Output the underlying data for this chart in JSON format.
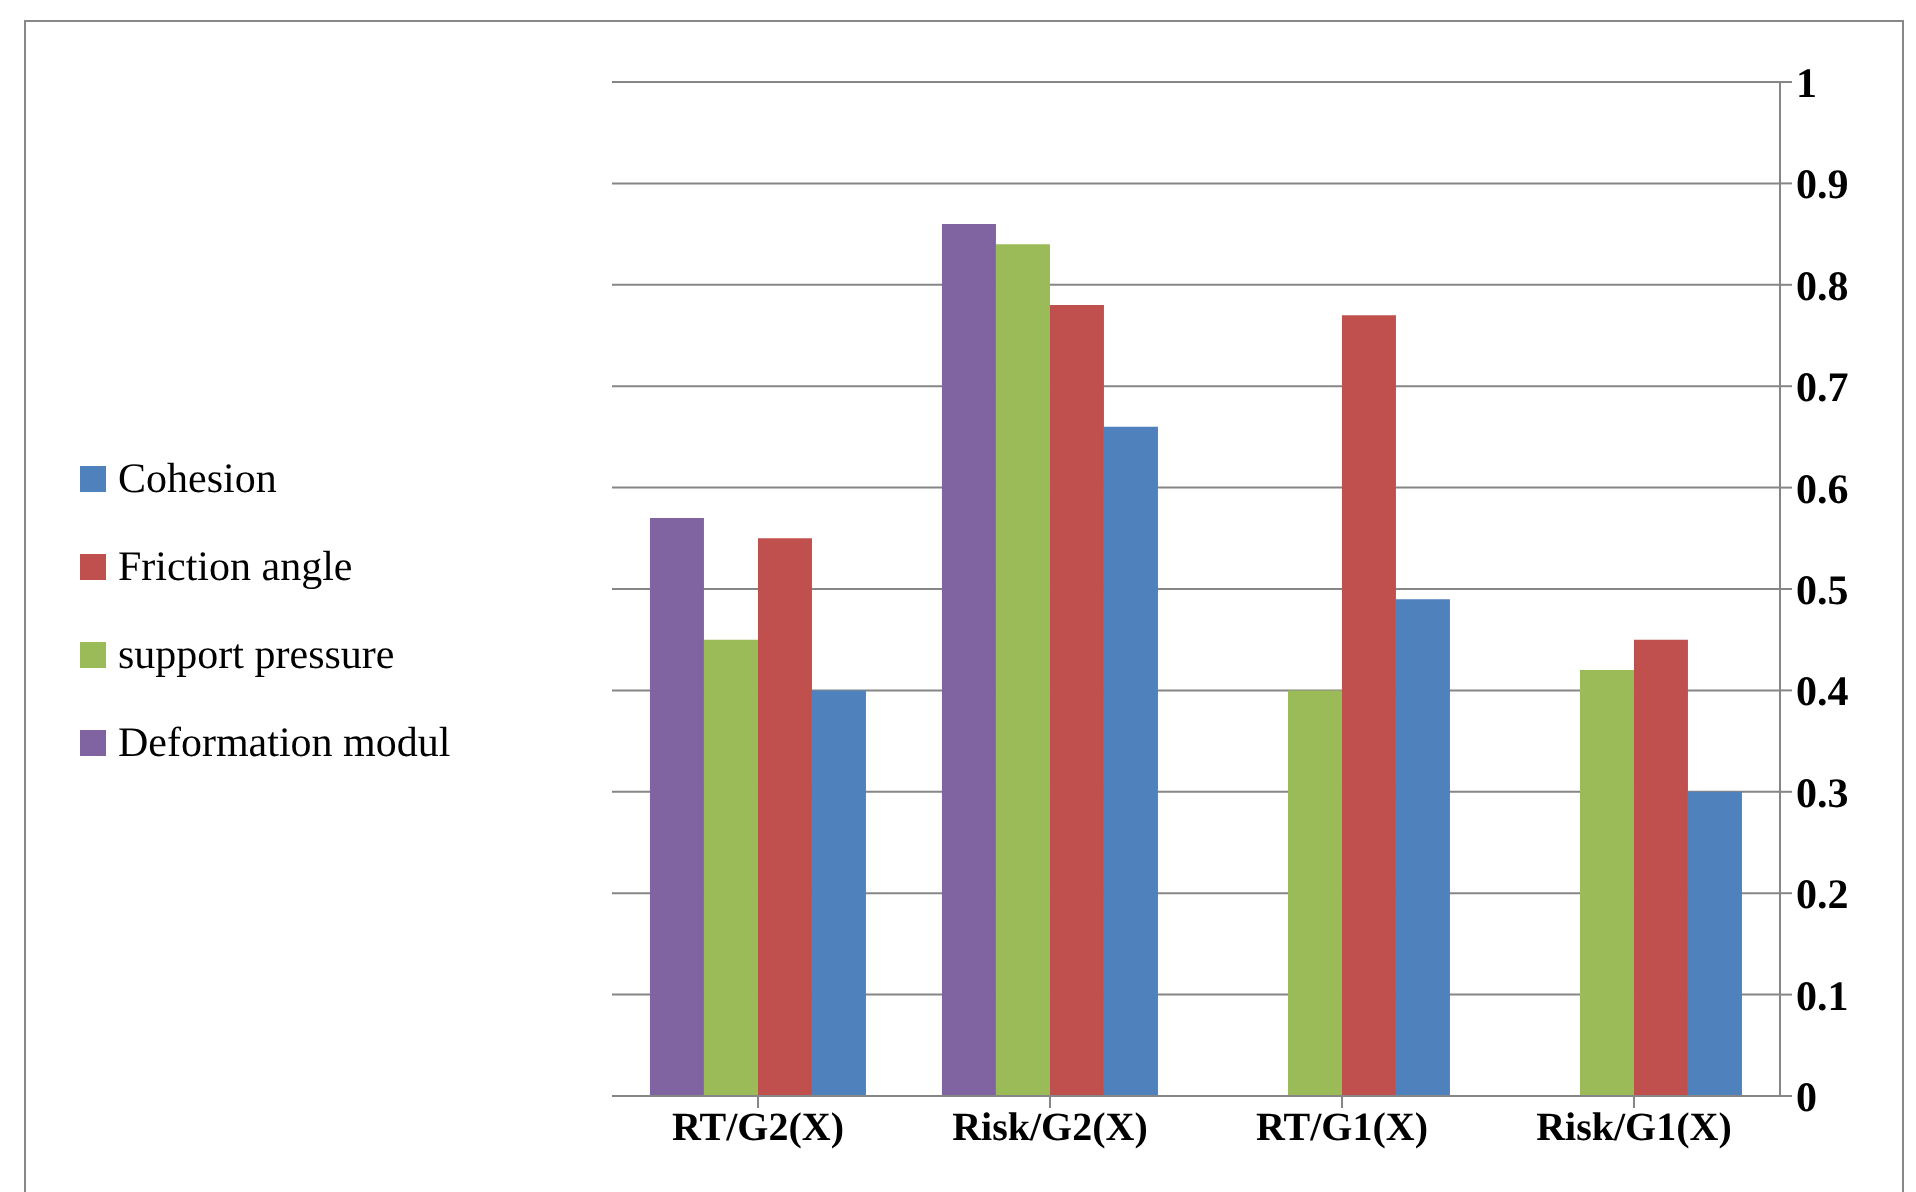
{
  "chart_data": {
    "type": "bar",
    "categories": [
      "RT/G2(X)",
      "Risk/G2(X)",
      "RT/G1(X)",
      "Risk/G1(X)"
    ],
    "series": [
      {
        "name": "Cohesion",
        "color": "#4f81bd",
        "values": [
          0.4,
          0.66,
          0.49,
          0.3
        ]
      },
      {
        "name": "Friction angle",
        "color": "#c0504d",
        "values": [
          0.55,
          0.78,
          0.77,
          0.45
        ]
      },
      {
        "name": "support pressure",
        "color": "#9bbb59",
        "values": [
          0.45,
          0.84,
          0.4,
          0.42
        ]
      },
      {
        "name": "Deformation modul",
        "color": "#8064a2",
        "values": [
          0.57,
          0.86,
          null,
          null
        ]
      }
    ],
    "ylim": [
      0,
      1
    ],
    "yticks": [
      0,
      0.1,
      0.2,
      0.3,
      0.4,
      0.5,
      0.6,
      0.7,
      0.8,
      0.9,
      1
    ],
    "grid": "y",
    "legend": "left"
  }
}
